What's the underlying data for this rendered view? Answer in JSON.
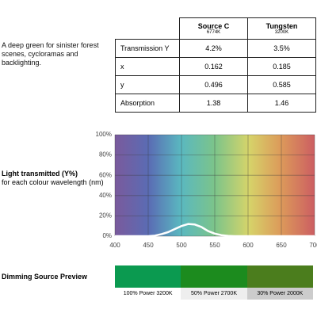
{
  "description": "A deep green for sinister forest scenes, cycloramas and backlighting.",
  "table": {
    "header": [
      {
        "name": "Source C",
        "sub": "6774K"
      },
      {
        "name": "Tungsten",
        "sub": "3200K"
      }
    ],
    "rows": [
      [
        "Transmission Y",
        "4.2%",
        "3.5%"
      ],
      [
        "x",
        "0.162",
        "0.185"
      ],
      [
        "y",
        "0.496",
        "0.585"
      ],
      [
        "Absorption",
        "1.38",
        "1.46"
      ]
    ]
  },
  "chart_data": {
    "type": "line",
    "title": "Light transmitted (Y%)",
    "subtitle": "for each colour wavelength (nm)",
    "x": [
      400,
      410,
      420,
      430,
      440,
      450,
      460,
      470,
      480,
      490,
      500,
      510,
      520,
      530,
      540,
      550,
      560,
      570,
      580,
      590,
      600,
      650,
      700
    ],
    "values": [
      0,
      0,
      0,
      0,
      0,
      0,
      0.5,
      2,
      4,
      7,
      10,
      12,
      11.5,
      9,
      5,
      2.5,
      1,
      0.3,
      0,
      0,
      0,
      0,
      0
    ],
    "color": "#ffffff",
    "xlim": [
      400,
      700
    ],
    "xticks": [
      400,
      450,
      500,
      550,
      600,
      650,
      700
    ],
    "ylim": [
      0,
      100
    ],
    "yticks": [
      {
        "value": 0,
        "label": "0%"
      },
      {
        "value": 20,
        "label": "20%"
      },
      {
        "value": 40,
        "label": "40%"
      },
      {
        "value": 60,
        "label": "60%"
      },
      {
        "value": 80,
        "label": "80%"
      },
      {
        "value": 100,
        "label": "100%"
      }
    ],
    "grid": true
  },
  "dimming": {
    "title": "Dimming Source Preview",
    "swatches": [
      {
        "label": "100% Power 3200K",
        "color": "#0b9a50",
        "label_bg": "#ffffff"
      },
      {
        "label": "50% Power 2700K",
        "color": "#1c8b1e",
        "label_bg": "#eeeeee"
      },
      {
        "label": "30% Power 2000K",
        "color": "#4b7d1d",
        "label_bg": "#cccccc"
      }
    ]
  }
}
